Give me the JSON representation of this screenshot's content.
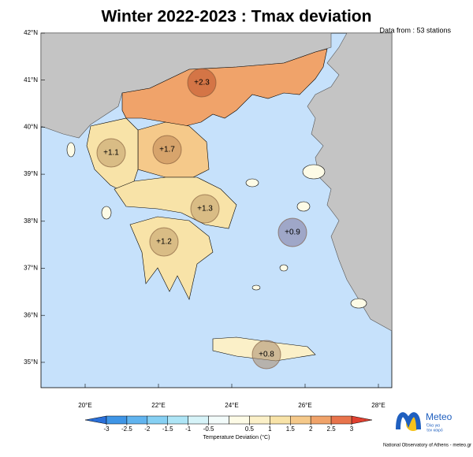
{
  "title": "Winter 2022-2023 : Tmax deviation",
  "subtitle": "Data from : 53 stations",
  "lat_ticks": [
    {
      "value": 42,
      "label": "42°N"
    },
    {
      "value": 41,
      "label": "41°N"
    },
    {
      "value": 40,
      "label": "40°N"
    },
    {
      "value": 39,
      "label": "39°N"
    },
    {
      "value": 38,
      "label": "38°N"
    },
    {
      "value": 37,
      "label": "37°N"
    },
    {
      "value": 36,
      "label": "36°N"
    },
    {
      "value": 35,
      "label": "35°N"
    }
  ],
  "lon_ticks": [
    {
      "value": 20,
      "label": "20°E"
    },
    {
      "value": 22,
      "label": "22°E"
    },
    {
      "value": 24,
      "label": "24°E"
    },
    {
      "value": 26,
      "label": "26°E"
    },
    {
      "value": 28,
      "label": "28°E"
    }
  ],
  "regions": [
    {
      "value": 2.3,
      "value_label": "+2.3"
    },
    {
      "value": 1.7,
      "value_label": "+1.7"
    },
    {
      "value": 1.1,
      "value_label": "+1.1"
    },
    {
      "value": 1.3,
      "value_label": "+1.3"
    },
    {
      "value": 1.2,
      "value_label": "+1.2"
    },
    {
      "value": 0.9,
      "value_label": "+0.9"
    },
    {
      "value": 0.8,
      "value_label": "+0.8"
    }
  ],
  "colorbar": {
    "lim": [
      -3,
      3
    ],
    "ticks": [
      -3,
      -2.5,
      -2,
      -1.5,
      -1,
      -0.5,
      0.5,
      1,
      1.5,
      2,
      2.5,
      3
    ],
    "label": "Temperature Deviation (°C)",
    "colors": [
      "#2a6fd8",
      "#3f95e6",
      "#61b4ef",
      "#86d0f3",
      "#aee5f6",
      "#d6f3f8",
      "#f2fbfa",
      "#fdfbe6",
      "#fbf0c8",
      "#f8e3a8",
      "#f5c98a",
      "#f0a36a",
      "#e8744c",
      "#e04030"
    ]
  },
  "logo": {
    "name": "Meteo",
    "tagline_1": "Όλα για",
    "tagline_2": "τον καιρό",
    "credit": "National Observatory of Athens - meteo.gr"
  }
}
